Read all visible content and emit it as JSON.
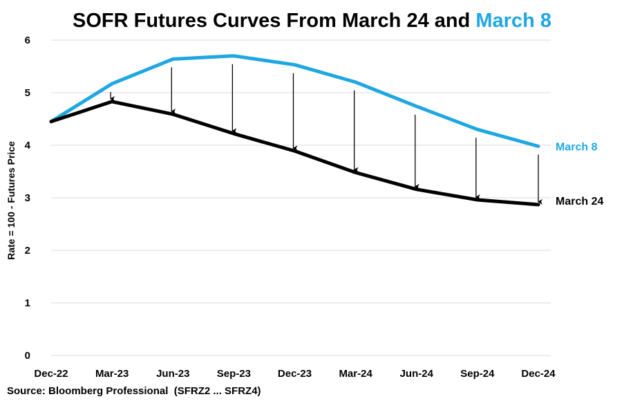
{
  "chart_data": {
    "type": "line",
    "title_parts": [
      "SOFR Futures Curves From March 24 and ",
      "March 8"
    ],
    "ylabel": "Rate = 100 - Futures Price",
    "xlabel": "",
    "categories": [
      "Dec-22",
      "Mar-23",
      "Jun-23",
      "Sep-23",
      "Dec-23",
      "Mar-24",
      "Jun-24",
      "Sep-24",
      "Dec-24"
    ],
    "ylim": [
      0,
      6
    ],
    "yticks": [
      0,
      1,
      2,
      3,
      4,
      5,
      6
    ],
    "grid": true,
    "series": [
      {
        "name": "March 8",
        "color": "#1fa7e1",
        "values": [
          4.45,
          5.17,
          5.64,
          5.7,
          5.53,
          5.2,
          4.74,
          4.3,
          3.98
        ]
      },
      {
        "name": "March 24",
        "color": "#000000",
        "values": [
          4.45,
          4.83,
          4.59,
          4.22,
          3.89,
          3.48,
          3.16,
          2.96,
          2.87
        ]
      }
    ],
    "annotations": "Arrows point from the March 8 curve down to the March 24 curve at each contract"
  },
  "source": "Source: Bloomberg Professional  (SFRZ2 ... SFRZ4)"
}
